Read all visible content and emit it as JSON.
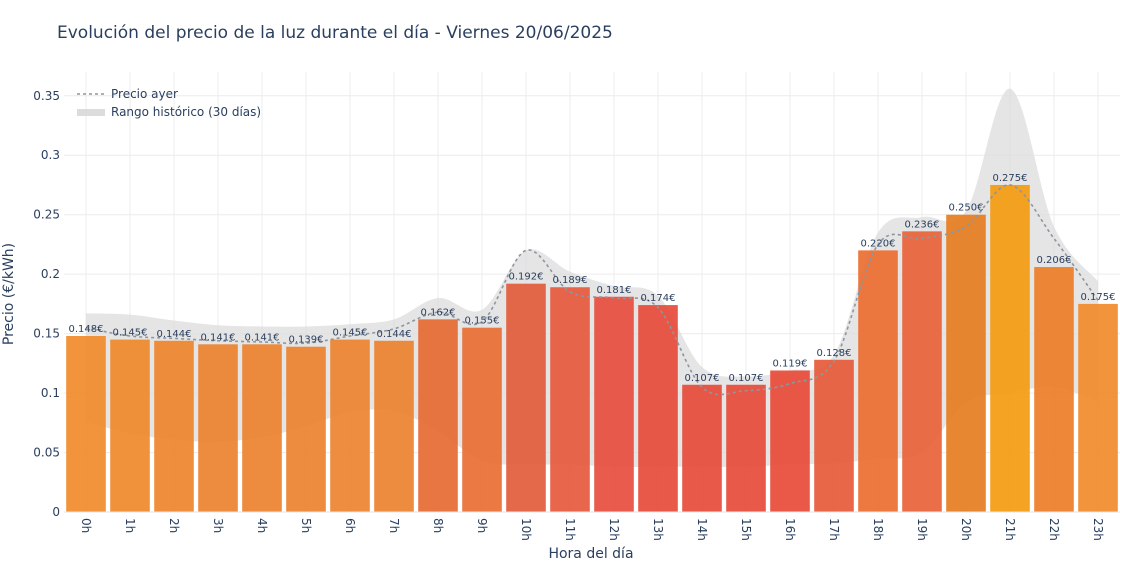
{
  "chart_data": {
    "type": "bar",
    "title": "Evolución del precio de la luz durante el día - Viernes 20/06/2025",
    "xlabel": "Hora del día",
    "ylabel": "Precio (€/kWh)",
    "categories": [
      "0h",
      "1h",
      "2h",
      "3h",
      "4h",
      "5h",
      "6h",
      "7h",
      "8h",
      "9h",
      "10h",
      "11h",
      "12h",
      "13h",
      "14h",
      "15h",
      "16h",
      "17h",
      "18h",
      "19h",
      "20h",
      "21h",
      "22h",
      "23h"
    ],
    "ylim": [
      0,
      0.37
    ],
    "yticks": [
      "0",
      "0.05",
      "0.1",
      "0.15",
      "0.2",
      "0.25",
      "0.3",
      "0.35"
    ],
    "ytick_values": [
      0,
      0.05,
      0.1,
      0.15,
      0.2,
      0.25,
      0.3,
      0.35
    ],
    "grid": true,
    "legend_position": "top-left",
    "series": [
      {
        "kind": "bar",
        "values": [
          0.148,
          0.145,
          0.144,
          0.141,
          0.141,
          0.139,
          0.145,
          0.144,
          0.162,
          0.155,
          0.192,
          0.189,
          0.181,
          0.174,
          0.107,
          0.107,
          0.119,
          0.128,
          0.22,
          0.236,
          0.25,
          0.275,
          0.206,
          0.175
        ],
        "labels": [
          "0.148€",
          "0.145€",
          "0.144€",
          "0.141€",
          "0.141€",
          "0.139€",
          "0.145€",
          "0.144€",
          "0.162€",
          "0.155€",
          "0.192€",
          "0.189€",
          "0.181€",
          "0.174€",
          "0.107€",
          "0.107€",
          "0.119€",
          "0.128€",
          "0.220€",
          "0.236€",
          "0.250€",
          "0.275€",
          "0.206€",
          "0.175€"
        ],
        "colors": [
          "#f08c2c",
          "#ef8a2d",
          "#ee872e",
          "#ec832f",
          "#ec832f",
          "#ec822f",
          "#ed8430",
          "#ec8330",
          "#e66c35",
          "#e96f35",
          "#e25c3c",
          "#e55a3e",
          "#e64f3f",
          "#e74c3c",
          "#e74c3c",
          "#e74c3c",
          "#e84c3a",
          "#e55b3a",
          "#ec6e31",
          "#e8643a",
          "#e67e22",
          "#f39c12",
          "#ee7e2a",
          "#f08c2c"
        ]
      },
      {
        "name": "Precio ayer",
        "kind": "line",
        "color": "#8c96a0",
        "values": [
          0.155,
          0.148,
          0.146,
          0.144,
          0.143,
          0.142,
          0.148,
          0.154,
          0.168,
          0.16,
          0.22,
          0.185,
          0.18,
          0.172,
          0.105,
          0.102,
          0.108,
          0.127,
          0.225,
          0.23,
          0.24,
          0.275,
          0.23,
          0.178
        ]
      },
      {
        "name": "Rango histórico (30 días)",
        "kind": "band",
        "color": "#dcdcdc",
        "upper": [
          0.167,
          0.166,
          0.161,
          0.157,
          0.156,
          0.156,
          0.158,
          0.162,
          0.18,
          0.17,
          0.22,
          0.202,
          0.19,
          0.182,
          0.122,
          0.114,
          0.119,
          0.132,
          0.235,
          0.248,
          0.253,
          0.356,
          0.24,
          0.194
        ],
        "lower": [
          0.076,
          0.066,
          0.061,
          0.059,
          0.063,
          0.072,
          0.084,
          0.085,
          0.068,
          0.043,
          0.04,
          0.04,
          0.038,
          0.038,
          0.038,
          0.038,
          0.04,
          0.041,
          0.045,
          0.05,
          0.092,
          0.1,
          0.105,
          0.093
        ]
      }
    ]
  }
}
